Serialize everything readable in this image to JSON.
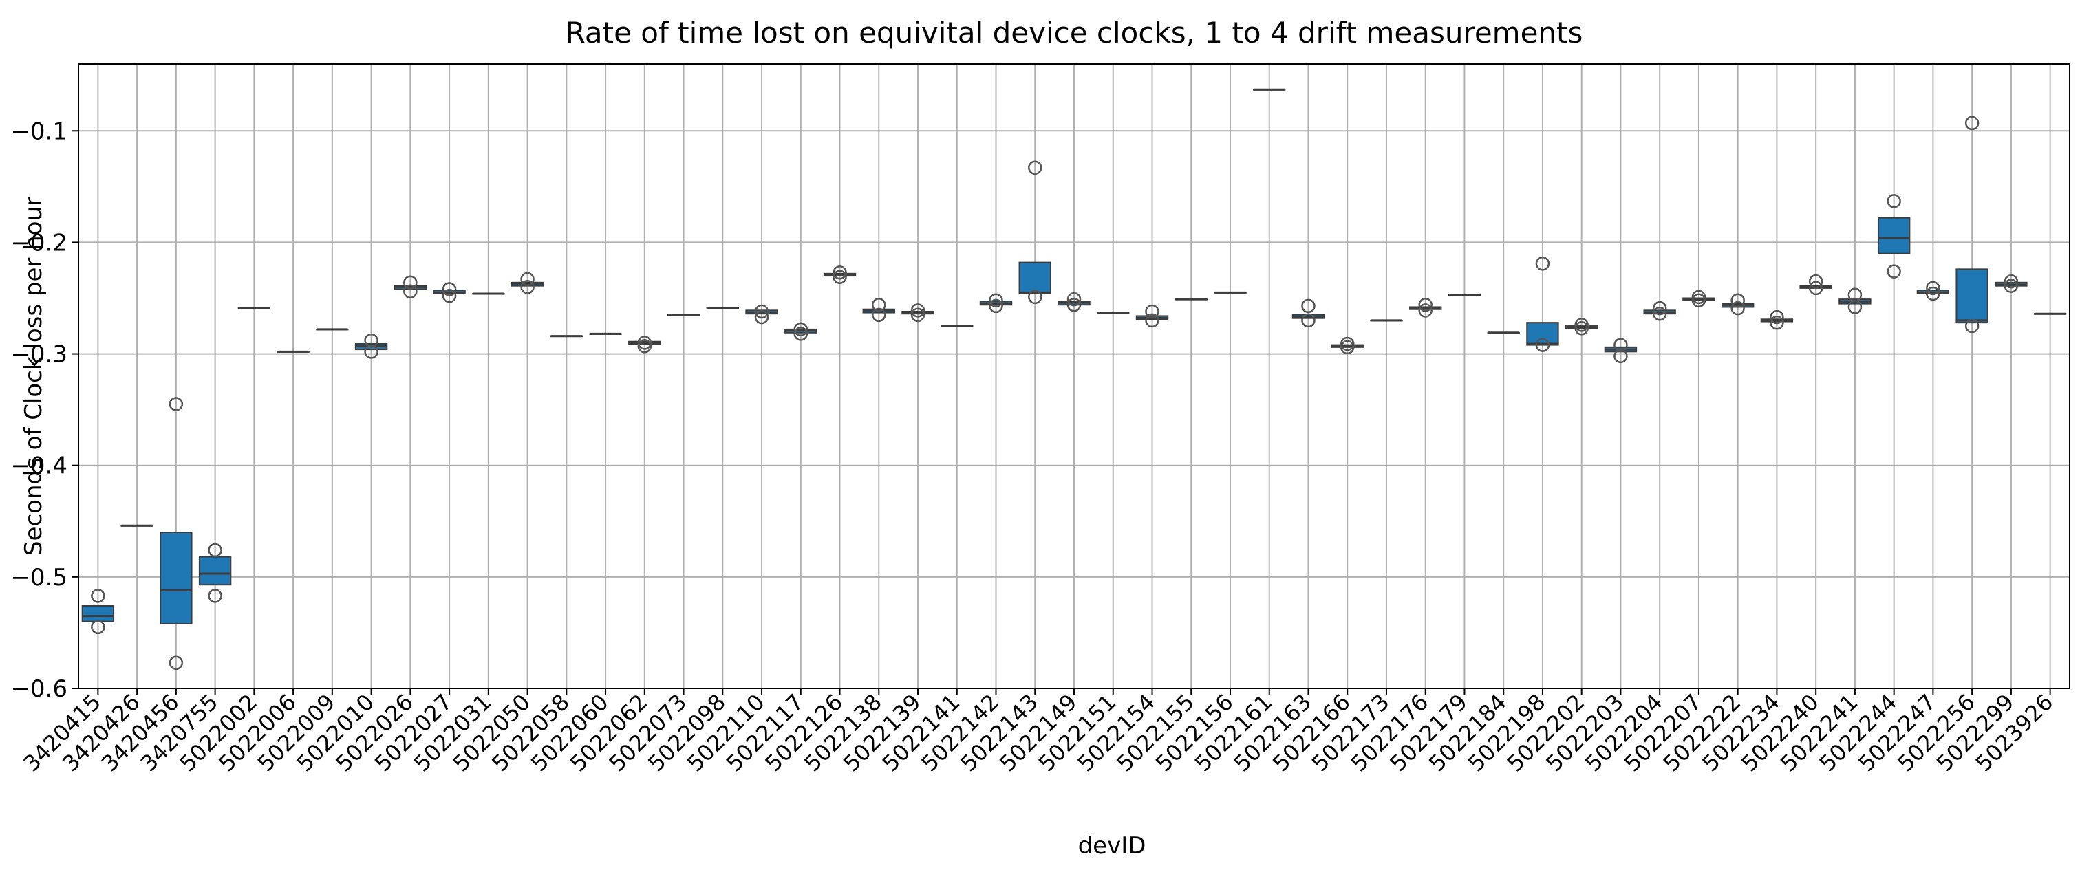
{
  "chart_data": {
    "type": "box",
    "title": "Rate of time lost on equivital device clocks, 1 to 4 drift measurements",
    "xlabel": "devID",
    "ylabel": "Seconds of Clock loss per hour",
    "ylim": [
      -0.6,
      -0.04
    ],
    "yticks": [
      -0.6,
      -0.5,
      -0.4,
      -0.3,
      -0.2,
      -0.1
    ],
    "ytick_labels": [
      "−0.6",
      "−0.5",
      "−0.4",
      "−0.3",
      "−0.2",
      "−0.1"
    ],
    "grid": true,
    "box_color": "#1f77b4",
    "categories": [
      "3420415",
      "3420426",
      "3420456",
      "3420755",
      "5022002",
      "5022006",
      "5022009",
      "5022010",
      "5022026",
      "5022027",
      "5022031",
      "5022050",
      "5022058",
      "5022060",
      "5022062",
      "5022073",
      "5022098",
      "5022110",
      "5022117",
      "5022126",
      "5022138",
      "5022139",
      "5022141",
      "5022142",
      "5022143",
      "5022149",
      "5022151",
      "5022154",
      "5022155",
      "5022156",
      "5022161",
      "5022163",
      "5022166",
      "5022173",
      "5022176",
      "5022179",
      "5022184",
      "5022198",
      "5022202",
      "5022203",
      "5022204",
      "5022207",
      "5022222",
      "5022234",
      "5022240",
      "5022241",
      "5022244",
      "5022247",
      "5022256",
      "5022299",
      "5023926"
    ],
    "boxes": [
      {
        "q1": -0.54,
        "median": -0.535,
        "q3": -0.526,
        "whisker_low": -0.54,
        "whisker_high": -0.526,
        "outliers": [
          -0.545,
          -0.517
        ]
      },
      {
        "q1": -0.454,
        "median": -0.454,
        "q3": -0.454,
        "whisker_low": -0.454,
        "whisker_high": -0.454,
        "outliers": []
      },
      {
        "q1": -0.542,
        "median": -0.512,
        "q3": -0.46,
        "whisker_low": -0.542,
        "whisker_high": -0.46,
        "outliers": [
          -0.577,
          -0.345
        ]
      },
      {
        "q1": -0.507,
        "median": -0.497,
        "q3": -0.482,
        "whisker_low": -0.507,
        "whisker_high": -0.482,
        "outliers": [
          -0.517,
          -0.476
        ]
      },
      {
        "q1": -0.259,
        "median": -0.259,
        "q3": -0.259,
        "whisker_low": -0.259,
        "whisker_high": -0.259,
        "outliers": []
      },
      {
        "q1": -0.298,
        "median": -0.298,
        "q3": -0.298,
        "whisker_low": -0.298,
        "whisker_high": -0.298,
        "outliers": []
      },
      {
        "q1": -0.278,
        "median": -0.278,
        "q3": -0.278,
        "whisker_low": -0.278,
        "whisker_high": -0.278,
        "outliers": []
      },
      {
        "q1": -0.296,
        "median": -0.293,
        "q3": -0.291,
        "whisker_low": -0.296,
        "whisker_high": -0.291,
        "outliers": [
          -0.298,
          -0.288
        ]
      },
      {
        "q1": -0.242,
        "median": -0.24,
        "q3": -0.239,
        "whisker_low": -0.242,
        "whisker_high": -0.239,
        "outliers": [
          -0.244,
          -0.236
        ]
      },
      {
        "q1": -0.246,
        "median": -0.245,
        "q3": -0.243,
        "whisker_low": -0.246,
        "whisker_high": -0.243,
        "outliers": [
          -0.248,
          -0.242
        ]
      },
      {
        "q1": -0.246,
        "median": -0.246,
        "q3": -0.246,
        "whisker_low": -0.246,
        "whisker_high": -0.246,
        "outliers": []
      },
      {
        "q1": -0.239,
        "median": -0.237,
        "q3": -0.236,
        "whisker_low": -0.239,
        "whisker_high": -0.236,
        "outliers": [
          -0.24,
          -0.233
        ]
      },
      {
        "q1": -0.284,
        "median": -0.284,
        "q3": -0.284,
        "whisker_low": -0.284,
        "whisker_high": -0.284,
        "outliers": []
      },
      {
        "q1": -0.282,
        "median": -0.282,
        "q3": -0.282,
        "whisker_low": -0.282,
        "whisker_high": -0.282,
        "outliers": []
      },
      {
        "q1": -0.291,
        "median": -0.29,
        "q3": -0.289,
        "whisker_low": -0.291,
        "whisker_high": -0.289,
        "outliers": [
          -0.293,
          -0.29
        ]
      },
      {
        "q1": -0.265,
        "median": -0.265,
        "q3": -0.265,
        "whisker_low": -0.265,
        "whisker_high": -0.265,
        "outliers": []
      },
      {
        "q1": -0.259,
        "median": -0.259,
        "q3": -0.259,
        "whisker_low": -0.259,
        "whisker_high": -0.259,
        "outliers": []
      },
      {
        "q1": -0.264,
        "median": -0.263,
        "q3": -0.261,
        "whisker_low": -0.264,
        "whisker_high": -0.261,
        "outliers": [
          -0.267,
          -0.262
        ]
      },
      {
        "q1": -0.281,
        "median": -0.279,
        "q3": -0.278,
        "whisker_low": -0.281,
        "whisker_high": -0.278,
        "outliers": [
          -0.282,
          -0.278
        ]
      },
      {
        "q1": -0.23,
        "median": -0.229,
        "q3": -0.228,
        "whisker_low": -0.23,
        "whisker_high": -0.228,
        "outliers": [
          -0.231,
          -0.227
        ]
      },
      {
        "q1": -0.263,
        "median": -0.261,
        "q3": -0.26,
        "whisker_low": -0.263,
        "whisker_high": -0.26,
        "outliers": [
          -0.265,
          -0.256
        ]
      },
      {
        "q1": -0.264,
        "median": -0.263,
        "q3": -0.262,
        "whisker_low": -0.264,
        "whisker_high": -0.262,
        "outliers": [
          -0.265,
          -0.261
        ]
      },
      {
        "q1": -0.275,
        "median": -0.275,
        "q3": -0.275,
        "whisker_low": -0.275,
        "whisker_high": -0.275,
        "outliers": []
      },
      {
        "q1": -0.256,
        "median": -0.255,
        "q3": -0.253,
        "whisker_low": -0.256,
        "whisker_high": -0.253,
        "outliers": [
          -0.257,
          -0.252
        ]
      },
      {
        "q1": -0.246,
        "median": -0.245,
        "q3": -0.218,
        "whisker_low": -0.246,
        "whisker_high": -0.218,
        "outliers": [
          -0.249,
          -0.133
        ]
      },
      {
        "q1": -0.256,
        "median": -0.254,
        "q3": -0.253,
        "whisker_low": -0.256,
        "whisker_high": -0.253,
        "outliers": [
          -0.256,
          -0.251
        ]
      },
      {
        "q1": -0.263,
        "median": -0.263,
        "q3": -0.263,
        "whisker_low": -0.263,
        "whisker_high": -0.263,
        "outliers": []
      },
      {
        "q1": -0.269,
        "median": -0.268,
        "q3": -0.266,
        "whisker_low": -0.269,
        "whisker_high": -0.266,
        "outliers": [
          -0.27,
          -0.262
        ]
      },
      {
        "q1": -0.251,
        "median": -0.251,
        "q3": -0.251,
        "whisker_low": -0.251,
        "whisker_high": -0.251,
        "outliers": []
      },
      {
        "q1": -0.245,
        "median": -0.245,
        "q3": -0.245,
        "whisker_low": -0.245,
        "whisker_high": -0.245,
        "outliers": []
      },
      {
        "q1": -0.063,
        "median": -0.063,
        "q3": -0.063,
        "whisker_low": -0.063,
        "whisker_high": -0.063,
        "outliers": []
      },
      {
        "q1": -0.268,
        "median": -0.267,
        "q3": -0.265,
        "whisker_low": -0.268,
        "whisker_high": -0.265,
        "outliers": [
          -0.27,
          -0.257
        ]
      },
      {
        "q1": -0.294,
        "median": -0.293,
        "q3": -0.292,
        "whisker_low": -0.294,
        "whisker_high": -0.292,
        "outliers": [
          -0.294,
          -0.291
        ]
      },
      {
        "q1": -0.27,
        "median": -0.27,
        "q3": -0.27,
        "whisker_low": -0.27,
        "whisker_high": -0.27,
        "outliers": []
      },
      {
        "q1": -0.26,
        "median": -0.259,
        "q3": -0.258,
        "whisker_low": -0.26,
        "whisker_high": -0.258,
        "outliers": [
          -0.261,
          -0.256
        ]
      },
      {
        "q1": -0.247,
        "median": -0.247,
        "q3": -0.247,
        "whisker_low": -0.247,
        "whisker_high": -0.247,
        "outliers": []
      },
      {
        "q1": -0.281,
        "median": -0.281,
        "q3": -0.281,
        "whisker_low": -0.281,
        "whisker_high": -0.281,
        "outliers": []
      },
      {
        "q1": -0.292,
        "median": -0.291,
        "q3": -0.272,
        "whisker_low": -0.292,
        "whisker_high": -0.272,
        "outliers": [
          -0.292,
          -0.219
        ]
      },
      {
        "q1": -0.277,
        "median": -0.276,
        "q3": -0.275,
        "whisker_low": -0.277,
        "whisker_high": -0.275,
        "outliers": [
          -0.277,
          -0.274
        ]
      },
      {
        "q1": -0.298,
        "median": -0.296,
        "q3": -0.294,
        "whisker_low": -0.298,
        "whisker_high": -0.294,
        "outliers": [
          -0.302,
          -0.292
        ]
      },
      {
        "q1": -0.264,
        "median": -0.263,
        "q3": -0.261,
        "whisker_low": -0.264,
        "whisker_high": -0.261,
        "outliers": [
          -0.264,
          -0.259
        ]
      },
      {
        "q1": -0.252,
        "median": -0.251,
        "q3": -0.25,
        "whisker_low": -0.252,
        "whisker_high": -0.25,
        "outliers": [
          -0.252,
          -0.249
        ]
      },
      {
        "q1": -0.258,
        "median": -0.256,
        "q3": -0.255,
        "whisker_low": -0.258,
        "whisker_high": -0.255,
        "outliers": [
          -0.259,
          -0.252
        ]
      },
      {
        "q1": -0.271,
        "median": -0.27,
        "q3": -0.269,
        "whisker_low": -0.271,
        "whisker_high": -0.269,
        "outliers": [
          -0.272,
          -0.267
        ]
      },
      {
        "q1": -0.241,
        "median": -0.24,
        "q3": -0.239,
        "whisker_low": -0.241,
        "whisker_high": -0.239,
        "outliers": [
          -0.241,
          -0.235
        ]
      },
      {
        "q1": -0.255,
        "median": -0.253,
        "q3": -0.251,
        "whisker_low": -0.255,
        "whisker_high": -0.251,
        "outliers": [
          -0.258,
          -0.247
        ]
      },
      {
        "q1": -0.21,
        "median": -0.196,
        "q3": -0.178,
        "whisker_low": -0.21,
        "whisker_high": -0.178,
        "outliers": [
          -0.226,
          -0.163
        ]
      },
      {
        "q1": -0.246,
        "median": -0.245,
        "q3": -0.243,
        "whisker_low": -0.246,
        "whisker_high": -0.243,
        "outliers": [
          -0.246,
          -0.241
        ]
      },
      {
        "q1": -0.272,
        "median": -0.27,
        "q3": -0.224,
        "whisker_low": -0.272,
        "whisker_high": -0.224,
        "outliers": [
          -0.275,
          -0.093
        ]
      },
      {
        "q1": -0.239,
        "median": -0.238,
        "q3": -0.236,
        "whisker_low": -0.239,
        "whisker_high": -0.236,
        "outliers": [
          -0.239,
          -0.235
        ]
      },
      {
        "q1": -0.264,
        "median": -0.264,
        "q3": -0.264,
        "whisker_low": -0.264,
        "whisker_high": -0.264,
        "outliers": []
      }
    ]
  }
}
